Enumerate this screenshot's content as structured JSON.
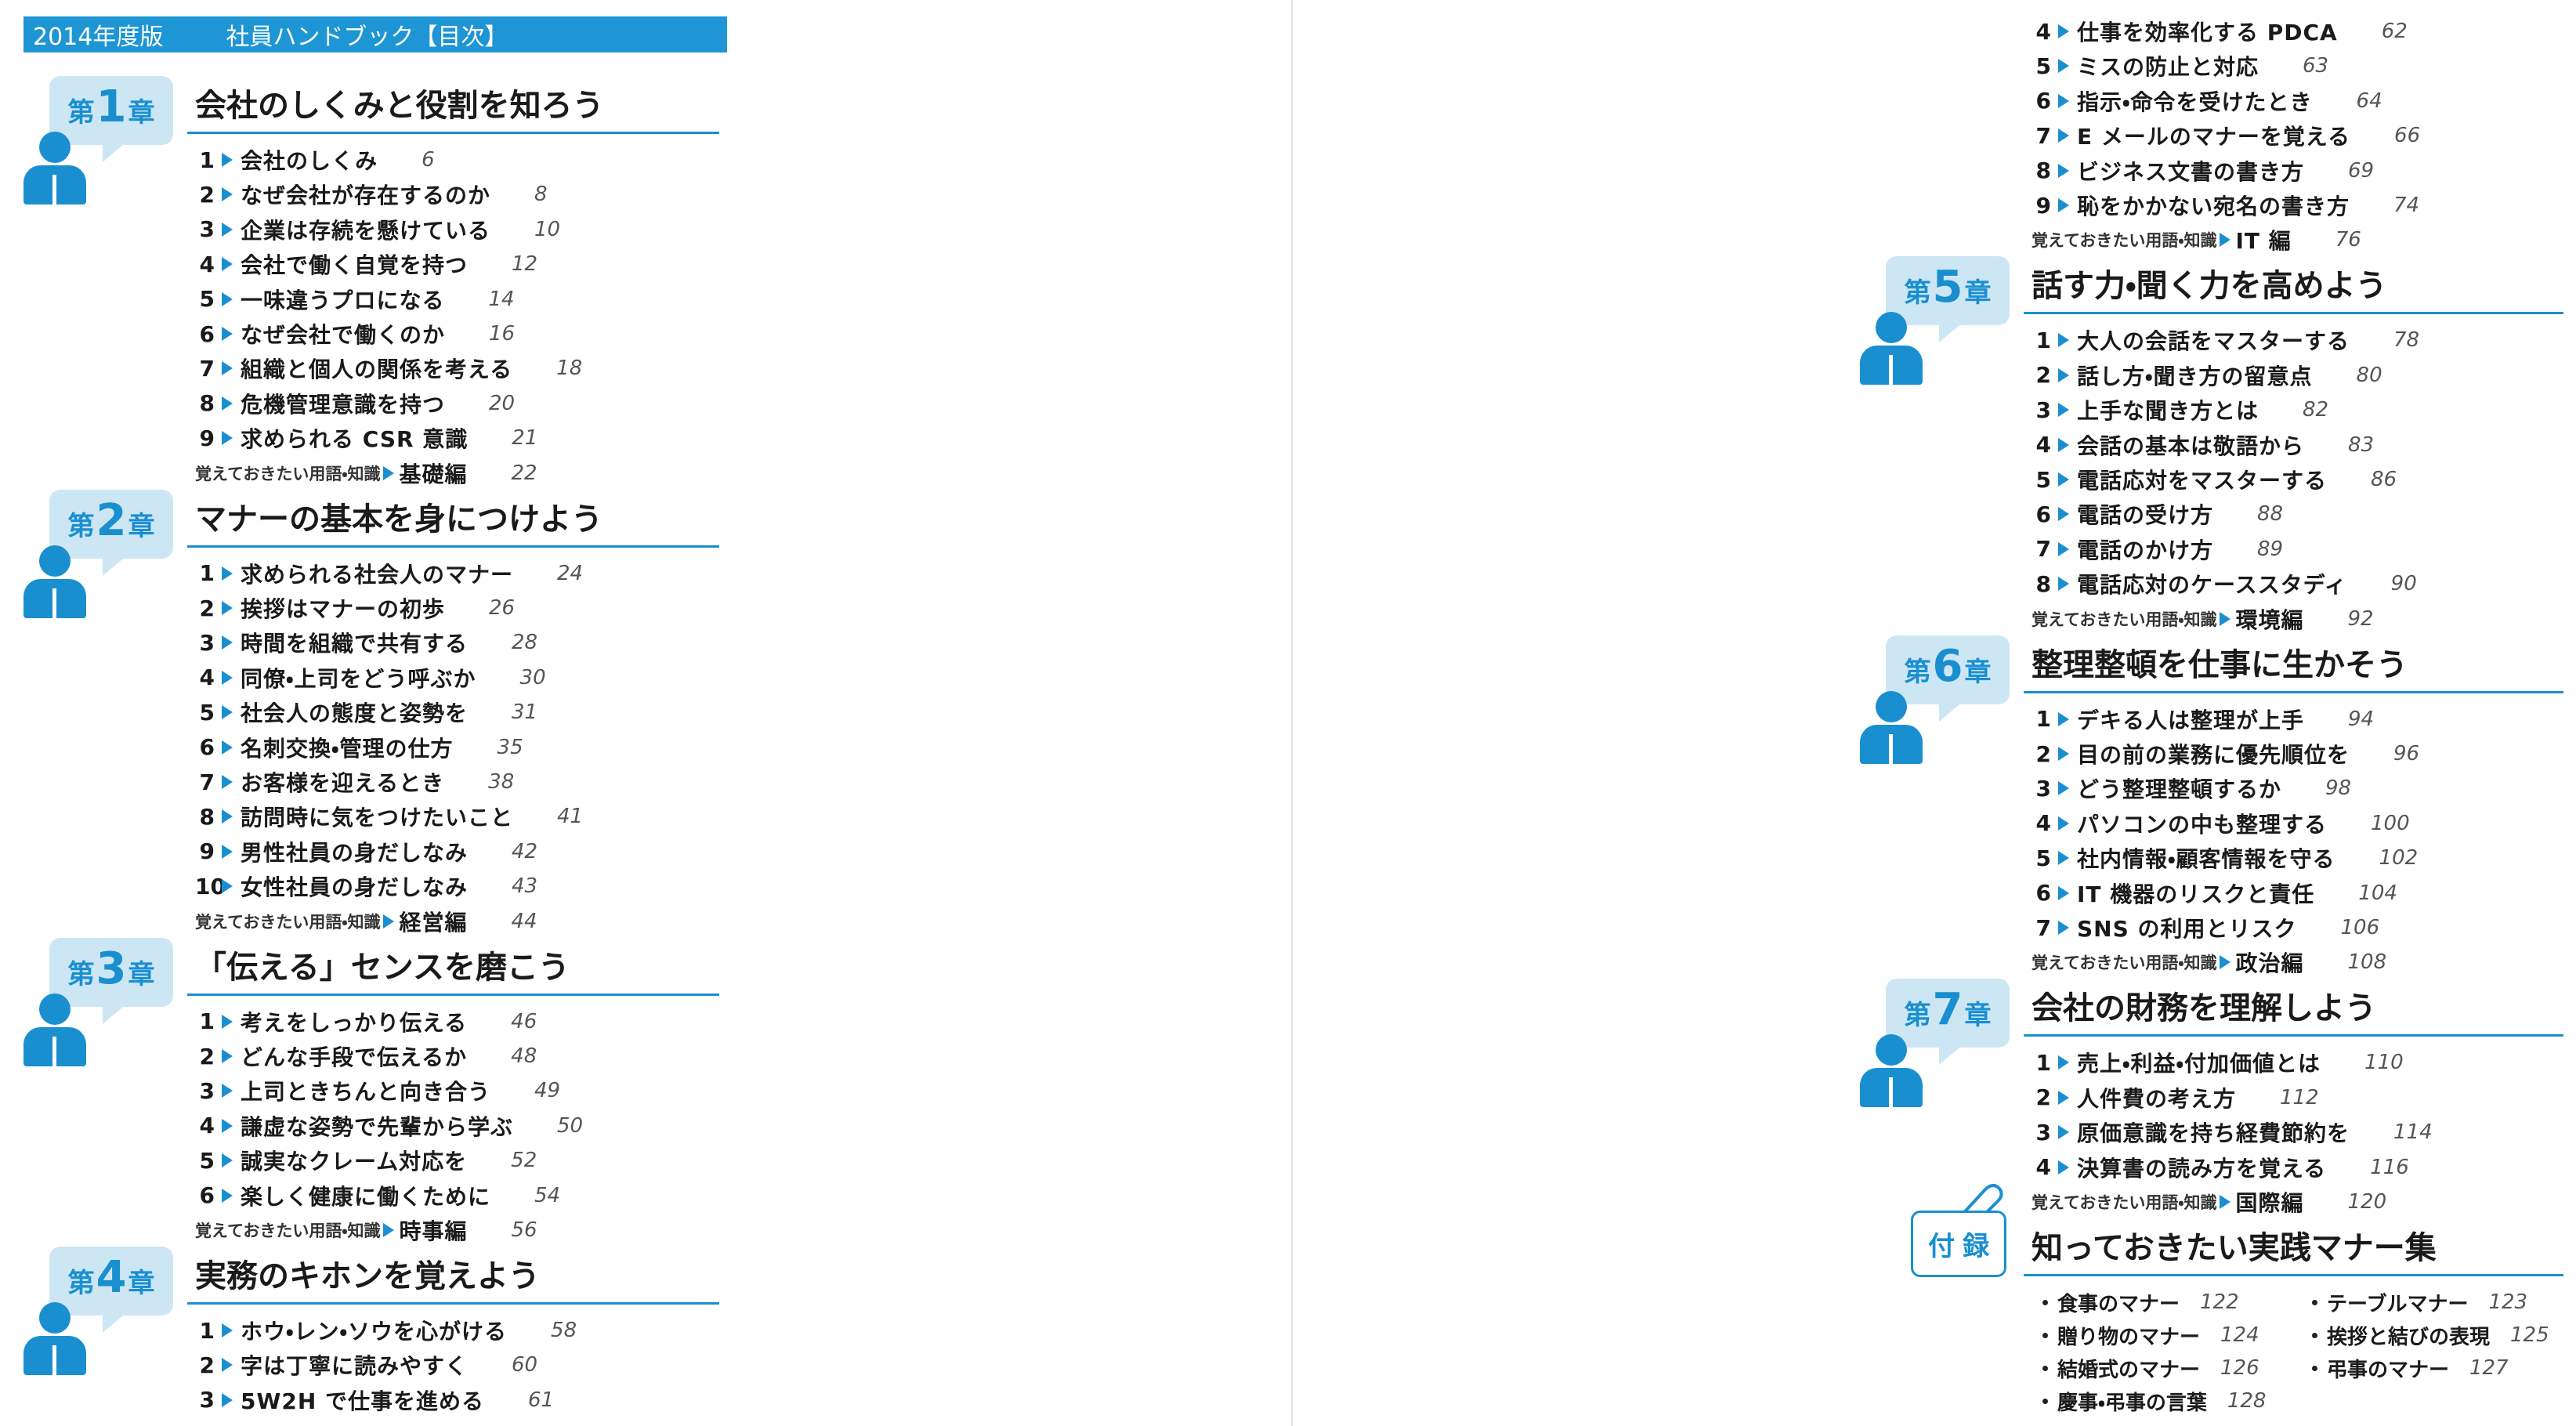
{
  "header": {
    "edition": "2014年度版",
    "title": "社員ハンドブック【目次】"
  },
  "chapters": [
    {
      "prefix": "第",
      "number": "1",
      "suffix": "章",
      "title": "会社のしくみと役割を知ろう",
      "items": [
        {
          "no": 1,
          "text": "会社のしくみ",
          "page": 6
        },
        {
          "no": 2,
          "text": "なぜ会社が存在するのか",
          "page": 8
        },
        {
          "no": 3,
          "text": "企業は存続を懸けている",
          "page": 10
        },
        {
          "no": 4,
          "text": "会社で働く自覚を持つ",
          "page": 12
        },
        {
          "no": 5,
          "text": "一味違うプロになる",
          "page": 14
        },
        {
          "no": 6,
          "text": "なぜ会社で働くのか",
          "page": 16
        },
        {
          "no": 7,
          "text": "組織と個人の関係を考える",
          "page": 18
        },
        {
          "no": 8,
          "text": "危機管理意識を持つ",
          "page": 20
        },
        {
          "no": 9,
          "text": "求められる CSR 意識",
          "page": 21
        }
      ],
      "glossary": {
        "label": "覚えておきたい用語・知識",
        "name": "基礎編",
        "page": 22
      }
    },
    {
      "prefix": "第",
      "number": "2",
      "suffix": "章",
      "title": "マナーの基本を身につけよう",
      "items": [
        {
          "no": 1,
          "text": "求められる社会人のマナー",
          "page": 24
        },
        {
          "no": 2,
          "text": "挨拶はマナーの初歩",
          "page": 26
        },
        {
          "no": 3,
          "text": "時間を組織で共有する",
          "page": 28
        },
        {
          "no": 4,
          "text": "同僚・上司をどう呼ぶか",
          "page": 30
        },
        {
          "no": 5,
          "text": "社会人の態度と姿勢を",
          "page": 31
        },
        {
          "no": 6,
          "text": "名刺交換・管理の仕方",
          "page": 35
        },
        {
          "no": 7,
          "text": "お客様を迎えるとき",
          "page": 38
        },
        {
          "no": 8,
          "text": "訪問時に気をつけたいこと",
          "page": 41
        },
        {
          "no": 9,
          "text": "男性社員の身だしなみ",
          "page": 42
        },
        {
          "no": 10,
          "text": "女性社員の身だしなみ",
          "page": 43
        }
      ],
      "glossary": {
        "label": "覚えておきたい用語・知識",
        "name": "経営編",
        "page": 44
      }
    },
    {
      "prefix": "第",
      "number": "3",
      "suffix": "章",
      "title": "「伝える」センスを磨こう",
      "items": [
        {
          "no": 1,
          "text": "考えをしっかり伝える",
          "page": 46
        },
        {
          "no": 2,
          "text": "どんな手段で伝えるか",
          "page": 48
        },
        {
          "no": 3,
          "text": "上司ときちんと向き合う",
          "page": 49
        },
        {
          "no": 4,
          "text": "謙虚な姿勢で先輩から学ぶ",
          "page": 50
        },
        {
          "no": 5,
          "text": "誠実なクレーム対応を",
          "page": 52
        },
        {
          "no": 6,
          "text": "楽しく健康に働くために",
          "page": 54
        }
      ],
      "glossary": {
        "label": "覚えておきたい用語・知識",
        "name": "時事編",
        "page": 56
      }
    },
    {
      "prefix": "第",
      "number": "4",
      "suffix": "章",
      "title": "実務のキホンを覚えよう",
      "items": [
        {
          "no": 1,
          "text": "ホウ・レン・ソウを心がける",
          "page": 58
        },
        {
          "no": 2,
          "text": "字は丁寧に読みやすく",
          "page": 60
        },
        {
          "no": 3,
          "text": "5W2H で仕事を進める",
          "page": 61
        },
        {
          "no": 4,
          "text": "仕事を効率化する PDCA",
          "page": 62
        },
        {
          "no": 5,
          "text": "ミスの防止と対応",
          "page": 63
        },
        {
          "no": 6,
          "text": "指示・命令を受けたとき",
          "page": 64
        },
        {
          "no": 7,
          "text": "E メールのマナーを覚える",
          "page": 66
        },
        {
          "no": 8,
          "text": "ビジネス文書の書き方",
          "page": 69
        },
        {
          "no": 9,
          "text": "恥をかかない宛名の書き方",
          "page": 74
        }
      ],
      "glossary": {
        "label": "覚えておきたい用語・知識",
        "name": "IT 編",
        "page": 76
      }
    },
    {
      "prefix": "第",
      "number": "5",
      "suffix": "章",
      "title": "話す力・聞く力を高めよう",
      "items": [
        {
          "no": 1,
          "text": "大人の会話をマスターする",
          "page": 78
        },
        {
          "no": 2,
          "text": "話し方・聞き方の留意点",
          "page": 80
        },
        {
          "no": 3,
          "text": "上手な聞き方とは",
          "page": 82
        },
        {
          "no": 4,
          "text": "会話の基本は敬語から",
          "page": 83
        },
        {
          "no": 5,
          "text": "電話応対をマスターする",
          "page": 86
        },
        {
          "no": 6,
          "text": "電話の受け方",
          "page": 88
        },
        {
          "no": 7,
          "text": "電話のかけ方",
          "page": 89
        },
        {
          "no": 8,
          "text": "電話応対のケーススタディ",
          "page": 90
        }
      ],
      "glossary": {
        "label": "覚えておきたい用語・知識",
        "name": "環境編",
        "page": 92
      }
    },
    {
      "prefix": "第",
      "number": "6",
      "suffix": "章",
      "title": "整理整頓を仕事に生かそう",
      "items": [
        {
          "no": 1,
          "text": "デキる人は整理が上手",
          "page": 94
        },
        {
          "no": 2,
          "text": "目の前の業務に優先順位を",
          "page": 96
        },
        {
          "no": 3,
          "text": "どう整理整頓するか",
          "page": 98
        },
        {
          "no": 4,
          "text": "パソコンの中も整理する",
          "page": 100
        },
        {
          "no": 5,
          "text": "社内情報・顧客情報を守る",
          "page": 102
        },
        {
          "no": 6,
          "text": "IT 機器のリスクと責任",
          "page": 104
        },
        {
          "no": 7,
          "text": "SNS の利用とリスク",
          "page": 106
        }
      ],
      "glossary": {
        "label": "覚えておきたい用語・知識",
        "name": "政治編",
        "page": 108
      }
    },
    {
      "prefix": "第",
      "number": "7",
      "suffix": "章",
      "title": "会社の財務を理解しよう",
      "items": [
        {
          "no": 1,
          "text": "売上・利益・付加価値とは",
          "page": 110
        },
        {
          "no": 2,
          "text": "人件費の考え方",
          "page": 112
        },
        {
          "no": 3,
          "text": "原価意識を持ち経費節約を",
          "page": 114
        },
        {
          "no": 4,
          "text": "決算書の読み方を覚える",
          "page": 116
        }
      ],
      "glossary": {
        "label": "覚えておきたい用語・知識",
        "name": "国際編",
        "page": 120
      }
    }
  ],
  "appendix": {
    "badge": "付録",
    "title": "知っておきたい実践マナー集",
    "items": [
      {
        "text": "食事のマナー",
        "page": 122
      },
      {
        "text": "テーブルマナー",
        "page": 123
      },
      {
        "text": "贈り物のマナー",
        "page": 124
      },
      {
        "text": "挨拶と結びの表現",
        "page": 125
      },
      {
        "text": "結婚式のマナー",
        "page": 126
      },
      {
        "text": "弔事のマナー",
        "page": 127
      },
      {
        "text": "慶事・弔事の言葉",
        "page": 128
      }
    ]
  }
}
